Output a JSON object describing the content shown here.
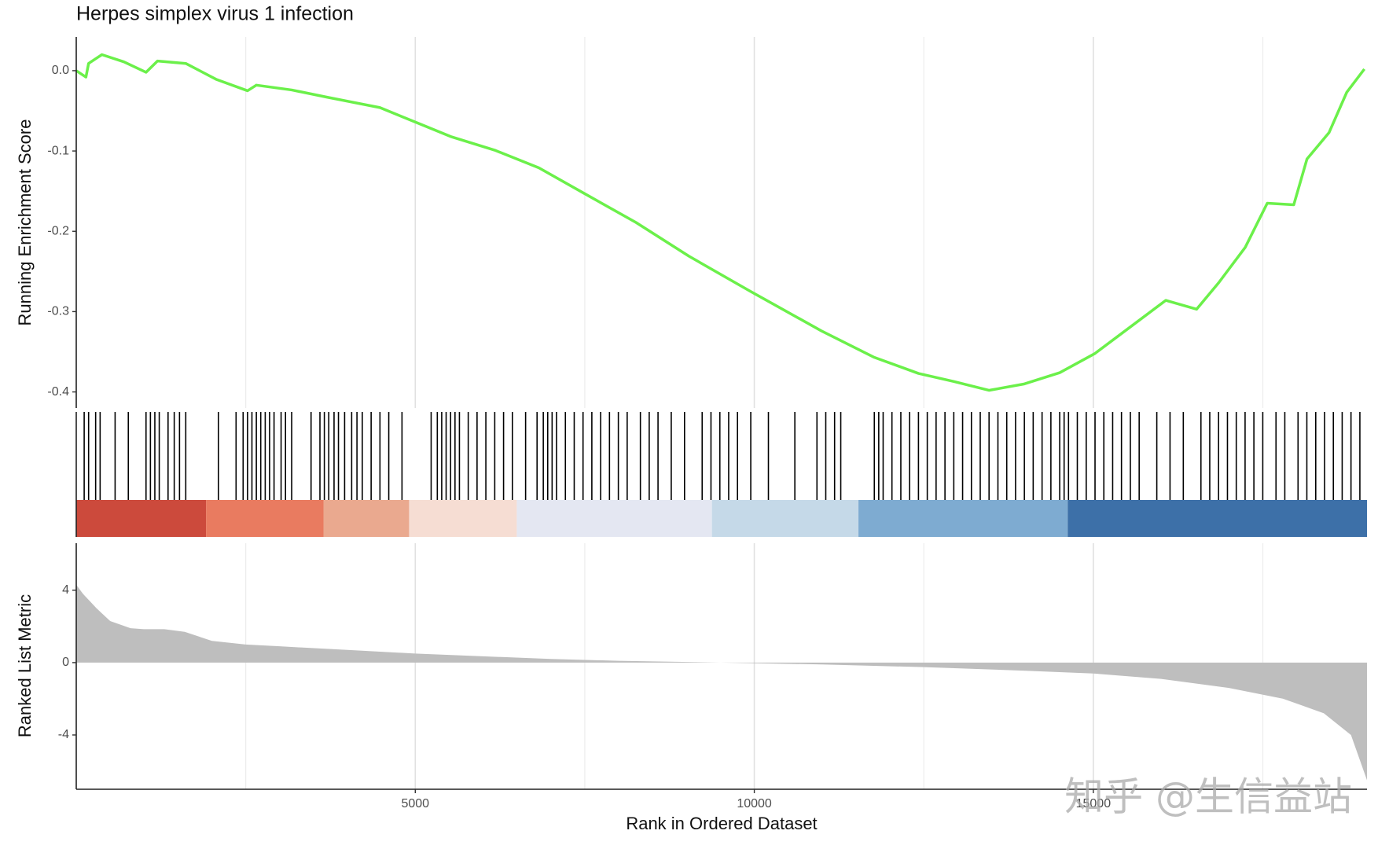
{
  "chart_data": [
    {
      "type": "line",
      "title": "Herpes simplex virus 1 infection",
      "y_label": "Running Enrichment Score",
      "x": [
        0,
        143,
        182,
        378,
        703,
        1029,
        1198,
        1615,
        2070,
        2526,
        2656,
        3177,
        3698,
        4479,
        5000,
        5521,
        6172,
        6823,
        7474,
        8255,
        9036,
        9948,
        10990,
        11771,
        12422,
        12943,
        13464,
        13984,
        14505,
        15026,
        15547,
        16068,
        16523,
        16849,
        17240,
        17565,
        17956,
        18151,
        18477,
        18737,
        18997
      ],
      "values": [
        0.0,
        -0.008,
        0.009,
        0.02,
        0.011,
        -0.002,
        0.012,
        0.009,
        -0.011,
        -0.025,
        -0.018,
        -0.024,
        -0.033,
        -0.046,
        -0.064,
        -0.082,
        -0.099,
        -0.121,
        -0.152,
        -0.189,
        -0.231,
        -0.275,
        -0.324,
        -0.357,
        -0.377,
        -0.387,
        -0.398,
        -0.39,
        -0.376,
        -0.352,
        -0.319,
        -0.286,
        -0.297,
        -0.264,
        -0.22,
        -0.165,
        -0.167,
        -0.11,
        -0.077,
        -0.027,
        0.002
      ],
      "color": "#6bf04a",
      "xlim": [
        0,
        19036
      ],
      "ylim": [
        -0.42,
        0.042
      ],
      "yticks": [
        {
          "value": 0,
          "label": "0.0"
        },
        -0.1,
        -0.2,
        -0.3,
        -0.4
      ],
      "grid": true
    },
    {
      "type": "rug",
      "x": [
        117,
        182,
        286,
        352,
        573,
        768,
        1029,
        1094,
        1159,
        1224,
        1354,
        1445,
        1523,
        1615,
        2096,
        2357,
        2461,
        2526,
        2591,
        2656,
        2721,
        2787,
        2851,
        2917,
        3021,
        3086,
        3177,
        3463,
        3594,
        3659,
        3724,
        3802,
        3867,
        3958,
        4062,
        4140,
        4218,
        4349,
        4479,
        4609,
        4804,
        5234,
        5325,
        5390,
        5455,
        5521,
        5586,
        5651,
        5781,
        5911,
        6041,
        6172,
        6302,
        6432,
        6627,
        6796,
        6888,
        6953,
        7018,
        7083,
        7214,
        7344,
        7474,
        7604,
        7734,
        7864,
        7995,
        8125,
        8320,
        8450,
        8580,
        8775,
        8971,
        9231,
        9361,
        9492,
        9622,
        9752,
        9948,
        10208,
        10598,
        10924,
        11054,
        11184,
        11275,
        11770,
        11835,
        11900,
        12030,
        12161,
        12291,
        12421,
        12551,
        12681,
        12812,
        12942,
        13072,
        13202,
        13332,
        13462,
        13593,
        13723,
        13853,
        13983,
        14113,
        14244,
        14374,
        14504,
        14569,
        14634,
        14764,
        14895,
        15025,
        15155,
        15285,
        15415,
        15546,
        15676,
        15936,
        16131,
        16327,
        16587,
        16717,
        16847,
        16978,
        17108,
        17238,
        17368,
        17499,
        17694,
        17824,
        18019,
        18149,
        18280,
        18410,
        18540,
        18670,
        18800,
        18931
      ],
      "color": "#000000",
      "xlim": [
        0,
        19036
      ],
      "color_bar": {
        "edges": [
          0,
          1914,
          3646,
          4909,
          6497,
          9375,
          11536,
          14622,
          19036
        ],
        "colors": [
          "#cc4a3c",
          "#e97b60",
          "#eaa98f",
          "#f6ddd3",
          "#e4e7f2",
          "#c5d9e8",
          "#7eabd1",
          "#3d70a8"
        ]
      }
    },
    {
      "type": "area",
      "y_label": "Ranked List Metric",
      "x_label": "Rank in Ordered Dataset",
      "x": [
        0,
        100,
        300,
        500,
        800,
        1000,
        1300,
        1600,
        2000,
        2500,
        3000,
        4000,
        5000,
        6000,
        7000,
        8000,
        9500,
        11000,
        12500,
        14000,
        15000,
        16000,
        17000,
        17800,
        18400,
        18800,
        19036
      ],
      "values": [
        4.3,
        3.8,
        3.0,
        2.3,
        1.9,
        1.85,
        1.85,
        1.7,
        1.2,
        1.0,
        0.9,
        0.7,
        0.5,
        0.35,
        0.2,
        0.1,
        0,
        -0.1,
        -0.25,
        -0.45,
        -0.6,
        -0.9,
        -1.4,
        -2.0,
        -2.8,
        -4.0,
        -6.5
      ],
      "color": "#bebebe",
      "xlim": [
        0,
        19036
      ],
      "ylim": [
        -7,
        6.6
      ],
      "yticks": [
        4,
        0,
        -4
      ],
      "xticks": [
        5000,
        10000,
        15000
      ],
      "grid": true
    }
  ],
  "watermark": "知乎 @生信益站"
}
